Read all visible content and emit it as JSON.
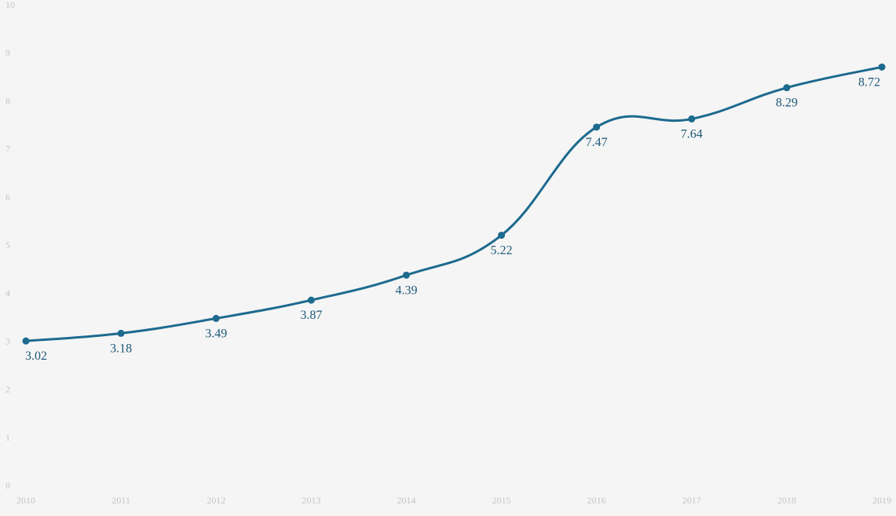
{
  "chart_data": {
    "type": "line",
    "title": "",
    "xlabel": "",
    "ylabel": "",
    "categories": [
      "2010",
      "2011",
      "2012",
      "2013",
      "2014",
      "2015",
      "2016",
      "2017",
      "2018",
      "2019"
    ],
    "series": [
      {
        "values": [
          3.02,
          3.18,
          3.49,
          3.87,
          4.39,
          5.22,
          7.47,
          7.64,
          8.29,
          8.72
        ],
        "labels": [
          "3.02",
          "3.18",
          "3.49",
          "3.87",
          "4.39",
          "5.22",
          "7.47",
          "7.64",
          "8.29",
          "8.72"
        ],
        "color": "#1d6a8e"
      }
    ],
    "ylim": [
      0,
      10
    ],
    "yticks": [
      "0",
      "1",
      "2",
      "3",
      "4",
      "5",
      "6",
      "7",
      "8",
      "9",
      "10"
    ],
    "smooth": true,
    "show_markers": true,
    "show_data_labels": true,
    "grid": false,
    "legend": "none",
    "background_color": "#f5f5f5",
    "tick_label_color": "#c4c4c4",
    "data_label_color": "#1d5878"
  }
}
